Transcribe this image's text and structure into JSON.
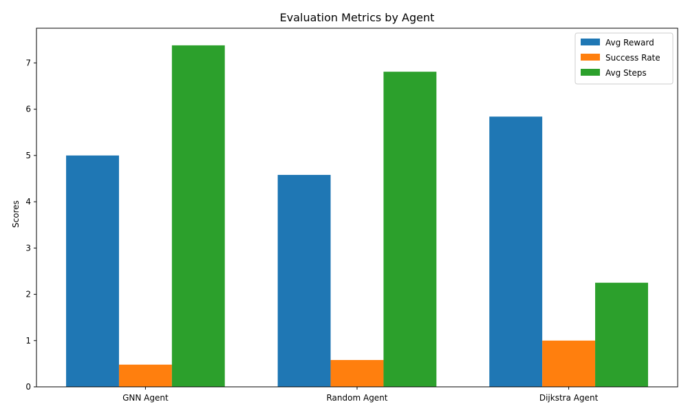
{
  "chart_data": {
    "type": "bar",
    "title": "Evaluation Metrics by Agent",
    "xlabel": "",
    "ylabel": "Scores",
    "categories": [
      "GNN Agent",
      "Random Agent",
      "Dijkstra Agent"
    ],
    "series": [
      {
        "name": "Avg Reward",
        "values": [
          5.0,
          4.58,
          5.84
        ],
        "color": "#1f77b4"
      },
      {
        "name": "Success Rate",
        "values": [
          0.48,
          0.58,
          1.0
        ],
        "color": "#ff7f0e"
      },
      {
        "name": "Avg Steps",
        "values": [
          7.38,
          6.81,
          2.25
        ],
        "color": "#2ca02c"
      }
    ],
    "ylim": [
      0,
      7.75
    ],
    "yticks": [
      0,
      1,
      2,
      3,
      4,
      5,
      6,
      7
    ],
    "grid": false,
    "legend": "top-right"
  }
}
